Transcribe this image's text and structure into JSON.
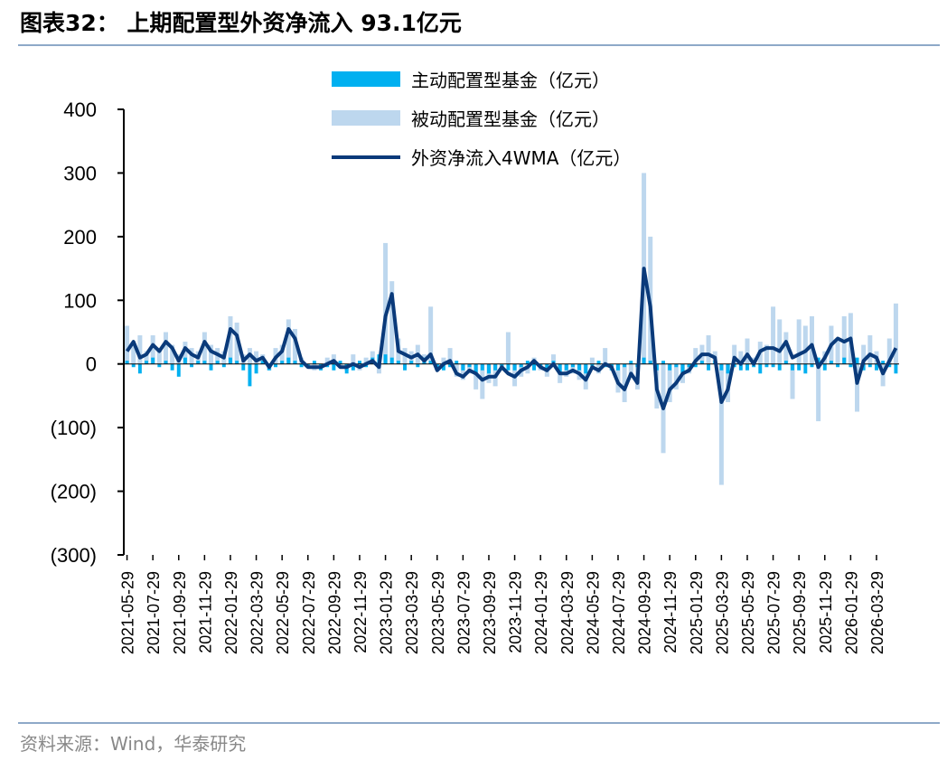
{
  "chart_data": {
    "type": "bar-line",
    "title": "图表32： 上期配置型外资净流入 93.1亿元",
    "source": "资料来源：Wind，华泰研究",
    "categories": [
      "2021-05-29",
      null,
      null,
      null,
      "2021-07-29",
      null,
      null,
      null,
      "2021-09-29",
      null,
      null,
      null,
      "2021-11-29",
      null,
      null,
      null,
      "2022-01-29",
      null,
      null,
      null,
      "2022-03-29",
      null,
      null,
      null,
      "2022-05-29",
      null,
      null,
      null,
      "2022-07-29",
      null,
      null,
      null,
      "2022-09-29",
      null,
      null,
      null,
      "2022-11-29",
      null,
      null,
      null,
      "2023-01-29",
      null,
      null,
      null,
      "2023-03-29",
      null,
      null,
      null,
      "2023-05-29",
      null,
      null,
      null,
      "2023-07-29",
      null,
      null,
      null,
      "2023-09-29",
      null,
      null,
      null,
      "2023-11-29",
      null,
      null,
      null,
      "2024-01-29",
      null,
      null,
      null,
      "2024-03-29",
      null,
      null,
      null,
      "2024-05-29",
      null,
      null,
      null,
      "2024-07-29",
      null,
      null,
      null,
      "2024-09-29",
      null,
      null,
      null,
      "2024-11-29",
      null,
      null,
      null,
      "2025-01-29",
      null,
      null,
      null,
      "2025-03-29",
      null,
      null,
      null,
      "2025-05-29",
      null,
      null,
      null,
      "2025-07-29",
      null,
      null,
      null,
      "2025-09-29",
      null,
      null,
      null,
      "2025-11-29",
      null,
      null,
      null,
      "2026-01-29",
      null,
      null,
      null,
      "2026-03-29",
      null,
      null,
      null
    ],
    "series": [
      {
        "name": "被动配置型基金（亿元）",
        "kind": "bar",
        "color": "#bdd7ee",
        "values": [
          60,
          30,
          45,
          20,
          45,
          25,
          50,
          30,
          15,
          35,
          25,
          20,
          50,
          30,
          25,
          20,
          75,
          65,
          15,
          25,
          20,
          15,
          -10,
          25,
          30,
          70,
          55,
          10,
          -5,
          -10,
          -5,
          10,
          15,
          -5,
          -10,
          15,
          -10,
          10,
          20,
          -15,
          190,
          130,
          40,
          25,
          20,
          30,
          15,
          90,
          -10,
          10,
          25,
          -20,
          -25,
          -15,
          -40,
          -55,
          -30,
          -35,
          -10,
          50,
          -35,
          -20,
          -15,
          10,
          -10,
          -20,
          15,
          -30,
          -20,
          -15,
          -25,
          -40,
          10,
          -15,
          25,
          -10,
          -45,
          -60,
          -20,
          -40,
          300,
          200,
          -70,
          -140,
          -60,
          -40,
          -30,
          -15,
          25,
          30,
          45,
          20,
          -190,
          -60,
          30,
          20,
          40,
          10,
          35,
          30,
          90,
          70,
          50,
          -55,
          70,
          60,
          75,
          -90,
          20,
          60,
          40,
          75,
          80,
          -75,
          30,
          45,
          20,
          -35,
          40,
          95
        ]
      },
      {
        "name": "主动配置型基金（亿元）",
        "kind": "bar",
        "color": "#00b0f0",
        "values": [
          5,
          -5,
          -15,
          5,
          10,
          -5,
          5,
          -10,
          -20,
          10,
          -5,
          5,
          5,
          -10,
          5,
          -5,
          10,
          5,
          -10,
          -35,
          -15,
          5,
          -10,
          -5,
          5,
          10,
          5,
          -5,
          -5,
          5,
          -10,
          -5,
          -10,
          5,
          -15,
          -10,
          5,
          -5,
          10,
          15,
          15,
          10,
          5,
          -10,
          5,
          -5,
          10,
          5,
          -5,
          -10,
          -5,
          5,
          -10,
          -5,
          -15,
          -10,
          -15,
          -10,
          -5,
          -10,
          -10,
          -5,
          5,
          -10,
          -5,
          -10,
          5,
          -15,
          -10,
          -5,
          -10,
          -15,
          -5,
          5,
          -5,
          -10,
          -10,
          -5,
          5,
          -5,
          10,
          5,
          -10,
          5,
          -10,
          -5,
          -15,
          -5,
          -5,
          5,
          -10,
          5,
          -10,
          -15,
          -5,
          -10,
          -10,
          -5,
          -15,
          -5,
          -5,
          -10,
          5,
          -10,
          -10,
          -15,
          -5,
          10,
          -10,
          5,
          -5,
          10,
          -5,
          10,
          -10,
          -5,
          -10,
          5,
          -5,
          -15
        ]
      },
      {
        "name": "外资净流入4WMA（亿元）",
        "kind": "line",
        "color": "#0a3a7a",
        "values": [
          20,
          35,
          10,
          15,
          30,
          20,
          35,
          25,
          5,
          25,
          15,
          10,
          35,
          20,
          15,
          10,
          55,
          45,
          5,
          15,
          5,
          10,
          -5,
          10,
          20,
          55,
          40,
          5,
          -5,
          -5,
          -5,
          0,
          5,
          -5,
          -5,
          0,
          -5,
          0,
          5,
          -5,
          75,
          110,
          20,
          15,
          10,
          15,
          5,
          15,
          -10,
          0,
          5,
          -15,
          -20,
          -10,
          -15,
          -25,
          -20,
          -20,
          -5,
          -15,
          -20,
          -10,
          -5,
          5,
          -5,
          -10,
          0,
          -15,
          -15,
          -10,
          -15,
          -25,
          -5,
          -10,
          0,
          -5,
          -30,
          -40,
          -15,
          -30,
          150,
          90,
          -40,
          -70,
          -40,
          -30,
          -15,
          -10,
          5,
          15,
          15,
          10,
          -60,
          -40,
          10,
          0,
          15,
          0,
          20,
          25,
          25,
          20,
          35,
          10,
          15,
          20,
          30,
          -5,
          10,
          30,
          40,
          35,
          40,
          -30,
          5,
          15,
          10,
          -15,
          5,
          25
        ]
      }
    ],
    "ylim": [
      -300,
      400
    ],
    "yticks": [
      {
        "value": -300,
        "label": "(300)"
      },
      {
        "value": -200,
        "label": "(200)"
      },
      {
        "value": -100,
        "label": "(100)"
      },
      0,
      100,
      200,
      300,
      400
    ]
  }
}
